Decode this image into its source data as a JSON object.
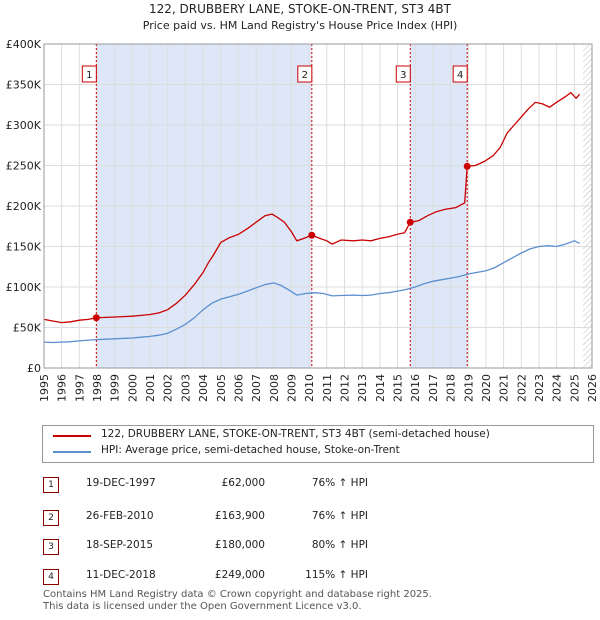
{
  "chart_data": {
    "type": "line",
    "title": "122, DRUBBERY LANE, STOKE-ON-TRENT, ST3 4BT",
    "subtitle": "Price paid vs. HM Land Registry's House Price Index (HPI)",
    "xlabel": "",
    "ylabel": "",
    "xlim": [
      1995,
      2026
    ],
    "ylim": [
      0,
      400000
    ],
    "yticks": [
      {
        "value": 0,
        "label": "£0"
      },
      {
        "value": 50000,
        "label": "£50K"
      },
      {
        "value": 100000,
        "label": "£100K"
      },
      {
        "value": 150000,
        "label": "£150K"
      },
      {
        "value": 200000,
        "label": "£200K"
      },
      {
        "value": 250000,
        "label": "£250K"
      },
      {
        "value": 300000,
        "label": "£300K"
      },
      {
        "value": 350000,
        "label": "£350K"
      },
      {
        "value": 400000,
        "label": "£400K"
      }
    ],
    "xticks": [
      "1995",
      "1996",
      "1997",
      "1998",
      "1999",
      "2000",
      "2001",
      "2002",
      "2003",
      "2004",
      "2005",
      "2006",
      "2007",
      "2008",
      "2009",
      "2010",
      "2011",
      "2012",
      "2013",
      "2014",
      "2015",
      "2016",
      "2017",
      "2018",
      "2019",
      "2020",
      "2021",
      "2022",
      "2023",
      "2024",
      "2025",
      "2026"
    ],
    "series": [
      {
        "name": "122, DRUBBERY LANE, STOKE-ON-TRENT, ST3 4BT (semi-detached house)",
        "color": "#cc0000",
        "points": [
          [
            1995.0,
            60000
          ],
          [
            1995.5,
            58000
          ],
          [
            1996.0,
            56000
          ],
          [
            1996.5,
            57000
          ],
          [
            1997.0,
            59000
          ],
          [
            1997.5,
            60000
          ],
          [
            1997.96,
            62000
          ],
          [
            1998.5,
            62500
          ],
          [
            1999.0,
            63000
          ],
          [
            1999.5,
            63500
          ],
          [
            2000.0,
            64000
          ],
          [
            2000.5,
            65000
          ],
          [
            2001.0,
            66000
          ],
          [
            2001.5,
            68000
          ],
          [
            2002.0,
            72000
          ],
          [
            2002.5,
            80000
          ],
          [
            2003.0,
            90000
          ],
          [
            2003.5,
            103000
          ],
          [
            2004.0,
            118000
          ],
          [
            2004.3,
            130000
          ],
          [
            2004.6,
            140000
          ],
          [
            2005.0,
            155000
          ],
          [
            2005.5,
            161000
          ],
          [
            2006.0,
            165000
          ],
          [
            2006.5,
            172000
          ],
          [
            2007.0,
            180000
          ],
          [
            2007.5,
            188000
          ],
          [
            2007.9,
            190000
          ],
          [
            2008.2,
            186000
          ],
          [
            2008.6,
            180000
          ],
          [
            2009.0,
            168000
          ],
          [
            2009.3,
            157000
          ],
          [
            2009.7,
            160000
          ],
          [
            2010.15,
            163900
          ],
          [
            2010.6,
            160000
          ],
          [
            2011.0,
            157000
          ],
          [
            2011.3,
            153000
          ],
          [
            2011.8,
            158000
          ],
          [
            2012.5,
            157000
          ],
          [
            2013.0,
            158000
          ],
          [
            2013.5,
            157000
          ],
          [
            2014.0,
            160000
          ],
          [
            2014.5,
            162000
          ],
          [
            2015.0,
            165000
          ],
          [
            2015.4,
            167000
          ],
          [
            2015.72,
            180000
          ],
          [
            2016.2,
            182000
          ],
          [
            2016.7,
            188000
          ],
          [
            2017.2,
            193000
          ],
          [
            2017.7,
            196000
          ],
          [
            2018.3,
            198000
          ],
          [
            2018.8,
            204000
          ],
          [
            2018.94,
            249000
          ],
          [
            2019.4,
            250000
          ],
          [
            2019.9,
            255000
          ],
          [
            2020.4,
            262000
          ],
          [
            2020.8,
            272000
          ],
          [
            2021.2,
            290000
          ],
          [
            2021.6,
            300000
          ],
          [
            2022.0,
            310000
          ],
          [
            2022.4,
            320000
          ],
          [
            2022.8,
            328000
          ],
          [
            2023.2,
            326000
          ],
          [
            2023.6,
            322000
          ],
          [
            2024.0,
            328000
          ],
          [
            2024.5,
            335000
          ],
          [
            2024.8,
            340000
          ],
          [
            2025.1,
            333000
          ],
          [
            2025.3,
            338000
          ]
        ]
      },
      {
        "name": "HPI: Average price, semi-detached house, Stoke-on-Trent",
        "color": "#5b8fd0",
        "points": [
          [
            1995.0,
            32000
          ],
          [
            1995.5,
            31500
          ],
          [
            1996.0,
            32000
          ],
          [
            1996.5,
            32500
          ],
          [
            1997.0,
            33500
          ],
          [
            1997.5,
            34500
          ],
          [
            1998.0,
            35000
          ],
          [
            1998.5,
            35500
          ],
          [
            1999.0,
            36000
          ],
          [
            1999.5,
            36500
          ],
          [
            2000.0,
            37000
          ],
          [
            2000.5,
            38000
          ],
          [
            2001.0,
            39000
          ],
          [
            2001.5,
            40500
          ],
          [
            2002.0,
            43000
          ],
          [
            2002.5,
            48000
          ],
          [
            2003.0,
            54000
          ],
          [
            2003.5,
            62000
          ],
          [
            2004.0,
            72000
          ],
          [
            2004.5,
            80000
          ],
          [
            2005.0,
            85000
          ],
          [
            2005.5,
            88000
          ],
          [
            2006.0,
            91000
          ],
          [
            2006.5,
            95000
          ],
          [
            2007.0,
            99000
          ],
          [
            2007.5,
            103000
          ],
          [
            2008.0,
            105000
          ],
          [
            2008.4,
            102000
          ],
          [
            2008.8,
            97000
          ],
          [
            2009.3,
            90000
          ],
          [
            2009.8,
            92000
          ],
          [
            2010.3,
            93000
          ],
          [
            2010.8,
            92000
          ],
          [
            2011.3,
            89000
          ],
          [
            2011.8,
            89500
          ],
          [
            2012.5,
            90000
          ],
          [
            2013.0,
            89500
          ],
          [
            2013.5,
            90000
          ],
          [
            2014.0,
            92000
          ],
          [
            2014.5,
            93000
          ],
          [
            2015.0,
            95000
          ],
          [
            2015.5,
            97000
          ],
          [
            2016.0,
            100000
          ],
          [
            2016.5,
            104000
          ],
          [
            2017.0,
            107000
          ],
          [
            2017.5,
            109000
          ],
          [
            2018.0,
            111000
          ],
          [
            2018.5,
            113000
          ],
          [
            2019.0,
            116000
          ],
          [
            2019.5,
            118000
          ],
          [
            2020.0,
            120000
          ],
          [
            2020.5,
            124000
          ],
          [
            2021.0,
            130000
          ],
          [
            2021.5,
            136000
          ],
          [
            2022.0,
            142000
          ],
          [
            2022.5,
            147000
          ],
          [
            2023.0,
            150000
          ],
          [
            2023.5,
            151000
          ],
          [
            2024.0,
            150000
          ],
          [
            2024.5,
            153000
          ],
          [
            2025.0,
            157000
          ],
          [
            2025.3,
            154000
          ]
        ]
      }
    ],
    "shaded_bands": [
      [
        1997.96,
        2010.15
      ],
      [
        2015.72,
        2018.94
      ]
    ],
    "future_hatch_from": 2025.5,
    "sales": [
      {
        "num": "1",
        "x": 1997.96,
        "value": 62000
      },
      {
        "num": "2",
        "x": 2010.15,
        "value": 163900
      },
      {
        "num": "3",
        "x": 2015.72,
        "value": 180000
      },
      {
        "num": "4",
        "x": 2018.94,
        "value": 249000
      }
    ],
    "grid": true
  },
  "transactions": [
    {
      "num": "1",
      "date": "19-DEC-1997",
      "price": "£62,000",
      "hpi": "76% ↑ HPI"
    },
    {
      "num": "2",
      "date": "26-FEB-2010",
      "price": "£163,900",
      "hpi": "76% ↑ HPI"
    },
    {
      "num": "3",
      "date": "18-SEP-2015",
      "price": "£180,000",
      "hpi": "80% ↑ HPI"
    },
    {
      "num": "4",
      "date": "11-DEC-2018",
      "price": "£249,000",
      "hpi": "115% ↑ HPI"
    }
  ],
  "footer": {
    "line1": "Contains HM Land Registry data © Crown copyright and database right 2025.",
    "line2": "This data is licensed under the Open Government Licence v3.0."
  },
  "colors": {
    "property": "#cc0000",
    "hpi": "#5b8fd0",
    "band": "#dde7f8",
    "marker_border": "#cc0000"
  }
}
